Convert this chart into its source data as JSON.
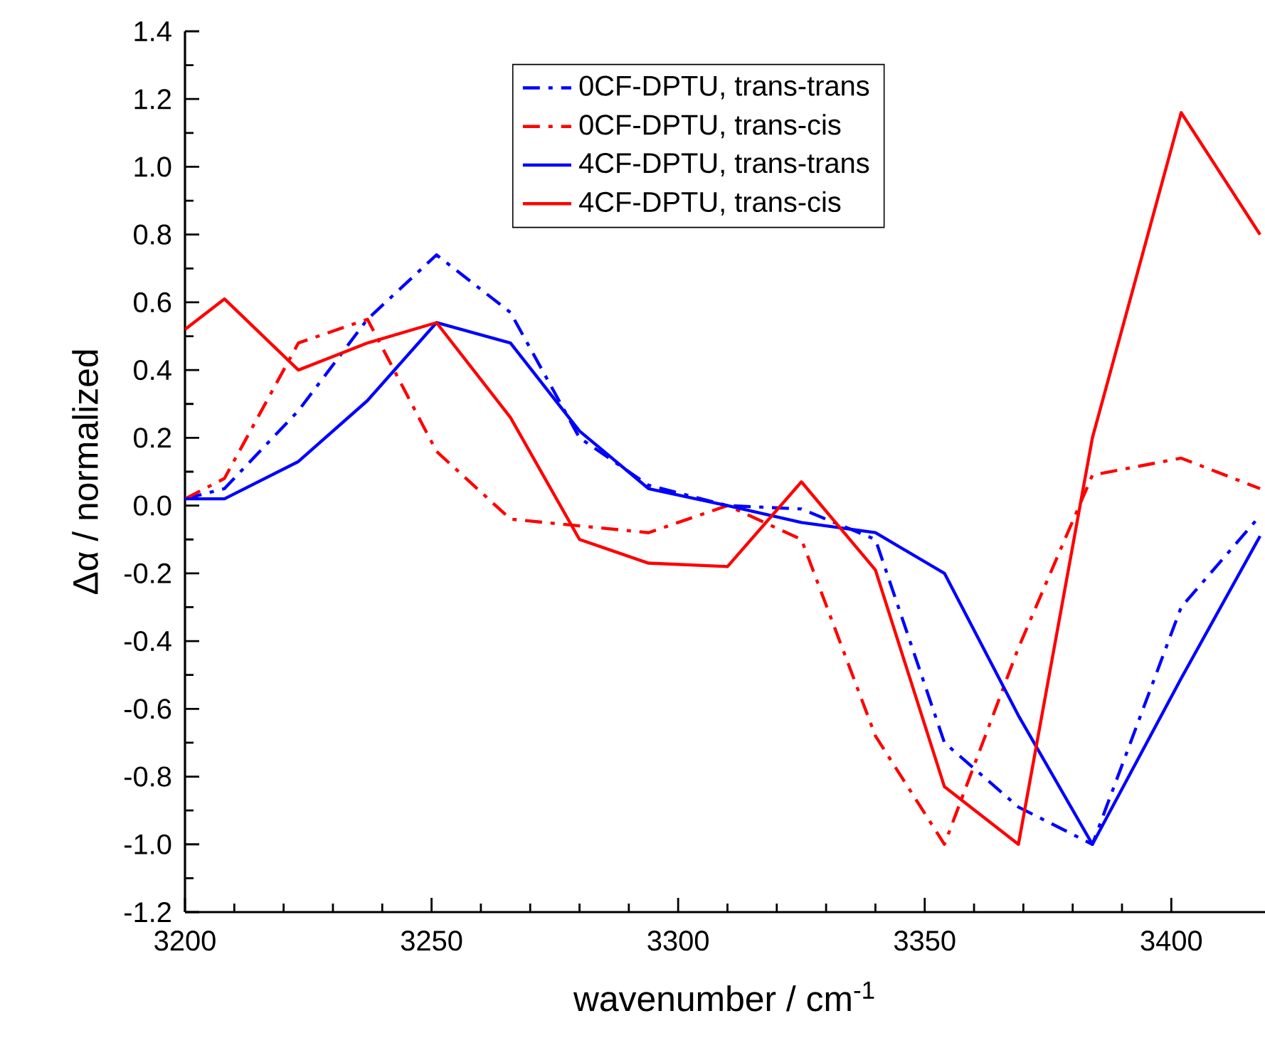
{
  "chart_data": {
    "type": "line",
    "xlabel": "wavenumber / cm$^{-1}$",
    "ylabel": "Δα / normalized",
    "x": [
      3200,
      3208,
      3223,
      3237,
      3251,
      3266,
      3280,
      3294,
      3310,
      3325,
      3340,
      3354,
      3369,
      3384,
      3402,
      3418
    ],
    "series": [
      {
        "name": "0CF-DPTU, trans-trans",
        "color": "#0000ff",
        "line_style": "dashed",
        "values": [
          0.02,
          0.05,
          0.28,
          0.55,
          0.74,
          0.57,
          0.2,
          0.06,
          0.0,
          -0.01,
          -0.1,
          -0.7,
          -0.89,
          -1.0,
          -0.3,
          -0.03
        ]
      },
      {
        "name": "0CF-DPTU, trans-cis",
        "color": "#ff0000",
        "line_style": "dashed",
        "values": [
          0.02,
          0.08,
          0.48,
          0.55,
          0.16,
          -0.04,
          -0.06,
          -0.08,
          0.0,
          -0.1,
          -0.68,
          -1.0,
          -0.42,
          0.09,
          0.14,
          0.05
        ]
      },
      {
        "name": "4CF-DPTU, trans-trans",
        "color": "#0000ff",
        "line_style": "solid",
        "values": [
          0.02,
          0.02,
          0.13,
          0.31,
          0.54,
          0.48,
          0.22,
          0.05,
          0.0,
          -0.05,
          -0.08,
          -0.2,
          -0.62,
          -1.0,
          -0.51,
          -0.09
        ]
      },
      {
        "name": "4CF-DPTU, trans-cis",
        "color": "#ff0000",
        "line_style": "solid",
        "values": [
          0.52,
          0.61,
          0.4,
          0.48,
          0.54,
          0.26,
          -0.1,
          -0.17,
          -0.18,
          0.07,
          -0.19,
          -0.83,
          -1.0,
          0.2,
          1.16,
          0.8
        ]
      }
    ],
    "xlim": [
      3200,
      3419
    ],
    "xticks": [
      3200,
      3250,
      3300,
      3350,
      3400
    ],
    "ylim": [
      -1.2,
      1.4
    ],
    "yticks": [
      -1.2,
      {
        "value": -1.0,
        "label": "-1.0"
      },
      -0.8,
      -0.6,
      -0.4,
      -0.2,
      {
        "value": 0.0,
        "label": "0.0"
      },
      0.2,
      0.4,
      0.6,
      0.8,
      {
        "value": 1.0,
        "label": "1.0"
      },
      1.2,
      1.4
    ],
    "grid": false,
    "legend": "top"
  }
}
